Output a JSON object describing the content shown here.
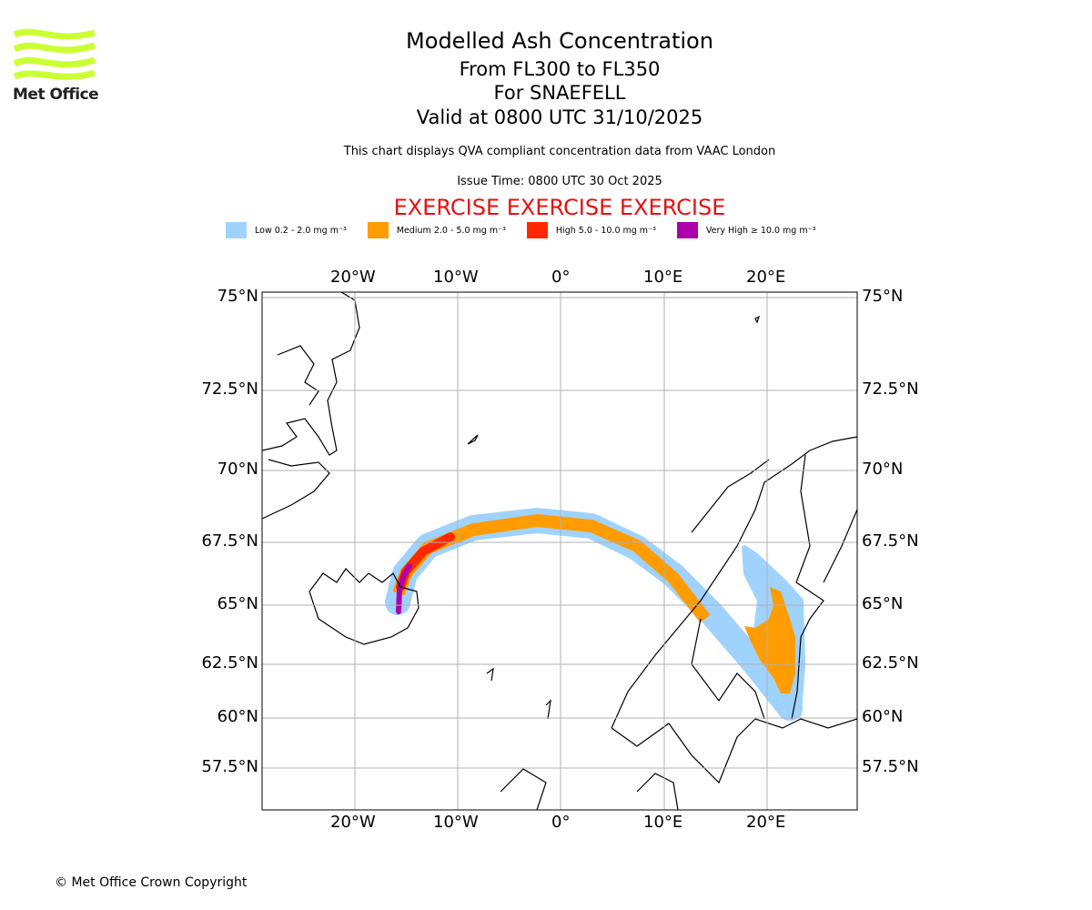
{
  "logo": {
    "text": "Met Office",
    "color": "#ccff33"
  },
  "header": {
    "title": "Modelled Ash Concentration",
    "levels": "From FL300 to FL350",
    "volcano": "For SNAEFELL",
    "valid": "Valid at 0800 UTC 31/10/2025",
    "description": "This chart displays QVA compliant concentration data from VAAC London",
    "issue_time": "Issue Time: 0800 UTC 30 Oct 2025",
    "exercise": "EXERCISE EXERCISE EXERCISE"
  },
  "legend": [
    {
      "label": "Low 0.2 - 2.0 mg m⁻³",
      "color": "#a0d2fe"
    },
    {
      "label": "Medium 2.0 - 5.0 mg m⁻³",
      "color": "#ff9c00"
    },
    {
      "label": "High 5.0 - 10.0 mg m⁻³",
      "color": "#ff2800"
    },
    {
      "label": "Very High ≥ 10.0 mg m⁻³",
      "color": "#aa00aa"
    }
  ],
  "map": {
    "lon_ticks": [
      "20°W",
      "10°W",
      "0°",
      "10°E",
      "20°E"
    ],
    "lat_ticks": [
      "75°N",
      "72.5°N",
      "70°N",
      "67.5°N",
      "65°N",
      "62.5°N",
      "60°N",
      "57.5°N"
    ],
    "grid": true
  },
  "footer": {
    "copyright": "© Met Office Crown Copyright"
  }
}
